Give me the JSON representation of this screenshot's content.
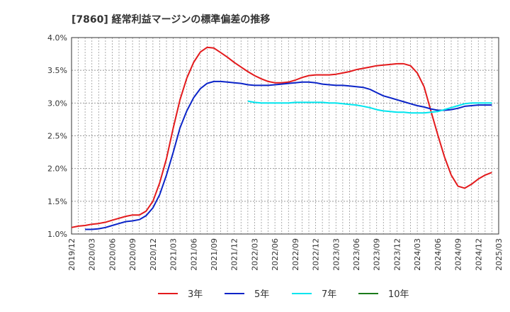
{
  "chart_data": {
    "type": "line",
    "title": "[7860]  経常利益マージンの標準偏差の推移",
    "xlabel": "",
    "ylabel": "",
    "ylim": [
      1.0,
      4.0
    ],
    "y_ticks": [
      "1.0%",
      "1.5%",
      "2.0%",
      "2.5%",
      "3.0%",
      "3.5%",
      "4.0%"
    ],
    "x_ticks": [
      "2019/12",
      "2020/03",
      "2020/06",
      "2020/09",
      "2020/12",
      "2021/03",
      "2021/06",
      "2021/09",
      "2021/12",
      "2022/03",
      "2022/06",
      "2022/09",
      "2022/12",
      "2023/03",
      "2023/06",
      "2023/09",
      "2023/12",
      "2024/03",
      "2024/06",
      "2024/09",
      "2024/12",
      "2025/03"
    ],
    "grid": true,
    "legend_position": "bottom",
    "series": [
      {
        "name": "3年",
        "color": "#e31a1c",
        "points": [
          [
            "2019/12",
            1.1
          ],
          [
            "2020/01",
            1.12
          ],
          [
            "2020/02",
            1.13
          ],
          [
            "2020/03",
            1.15
          ],
          [
            "2020/04",
            1.16
          ],
          [
            "2020/05",
            1.18
          ],
          [
            "2020/06",
            1.21
          ],
          [
            "2020/07",
            1.24
          ],
          [
            "2020/08",
            1.27
          ],
          [
            "2020/09",
            1.29
          ],
          [
            "2020/10",
            1.29
          ],
          [
            "2020/11",
            1.35
          ],
          [
            "2020/12",
            1.5
          ],
          [
            "2021/01",
            1.78
          ],
          [
            "2021/02",
            2.15
          ],
          [
            "2021/03",
            2.62
          ],
          [
            "2021/04",
            3.05
          ],
          [
            "2021/05",
            3.38
          ],
          [
            "2021/06",
            3.62
          ],
          [
            "2021/07",
            3.78
          ],
          [
            "2021/08",
            3.85
          ],
          [
            "2021/09",
            3.84
          ],
          [
            "2021/10",
            3.77
          ],
          [
            "2021/11",
            3.7
          ],
          [
            "2021/12",
            3.62
          ],
          [
            "2022/01",
            3.55
          ],
          [
            "2022/02",
            3.48
          ],
          [
            "2022/03",
            3.42
          ],
          [
            "2022/04",
            3.37
          ],
          [
            "2022/05",
            3.33
          ],
          [
            "2022/06",
            3.31
          ],
          [
            "2022/07",
            3.31
          ],
          [
            "2022/08",
            3.32
          ],
          [
            "2022/09",
            3.35
          ],
          [
            "2022/10",
            3.39
          ],
          [
            "2022/11",
            3.42
          ],
          [
            "2022/12",
            3.43
          ],
          [
            "2023/01",
            3.43
          ],
          [
            "2023/02",
            3.43
          ],
          [
            "2023/03",
            3.44
          ],
          [
            "2023/04",
            3.46
          ],
          [
            "2023/05",
            3.48
          ],
          [
            "2023/06",
            3.51
          ],
          [
            "2023/07",
            3.53
          ],
          [
            "2023/08",
            3.55
          ],
          [
            "2023/09",
            3.57
          ],
          [
            "2023/10",
            3.58
          ],
          [
            "2023/11",
            3.59
          ],
          [
            "2023/12",
            3.6
          ],
          [
            "2024/01",
            3.6
          ],
          [
            "2024/02",
            3.57
          ],
          [
            "2024/03",
            3.46
          ],
          [
            "2024/04",
            3.25
          ],
          [
            "2024/05",
            2.88
          ],
          [
            "2024/06",
            2.52
          ],
          [
            "2024/07",
            2.18
          ],
          [
            "2024/08",
            1.9
          ],
          [
            "2024/09",
            1.73
          ],
          [
            "2024/10",
            1.7
          ],
          [
            "2024/11",
            1.76
          ],
          [
            "2024/12",
            1.84
          ],
          [
            "2025/01",
            1.9
          ],
          [
            "2025/02",
            1.94
          ]
        ]
      },
      {
        "name": "5年",
        "color": "#0b24c8",
        "points": [
          [
            "2020/02",
            1.07
          ],
          [
            "2020/03",
            1.07
          ],
          [
            "2020/04",
            1.08
          ],
          [
            "2020/05",
            1.1
          ],
          [
            "2020/06",
            1.13
          ],
          [
            "2020/07",
            1.16
          ],
          [
            "2020/08",
            1.19
          ],
          [
            "2020/09",
            1.2
          ],
          [
            "2020/10",
            1.22
          ],
          [
            "2020/11",
            1.28
          ],
          [
            "2020/12",
            1.4
          ],
          [
            "2021/01",
            1.6
          ],
          [
            "2021/02",
            1.9
          ],
          [
            "2021/03",
            2.25
          ],
          [
            "2021/04",
            2.62
          ],
          [
            "2021/05",
            2.88
          ],
          [
            "2021/06",
            3.08
          ],
          [
            "2021/07",
            3.22
          ],
          [
            "2021/08",
            3.3
          ],
          [
            "2021/09",
            3.33
          ],
          [
            "2021/10",
            3.33
          ],
          [
            "2021/11",
            3.32
          ],
          [
            "2021/12",
            3.31
          ],
          [
            "2022/01",
            3.3
          ],
          [
            "2022/02",
            3.28
          ],
          [
            "2022/03",
            3.27
          ],
          [
            "2022/04",
            3.27
          ],
          [
            "2022/05",
            3.27
          ],
          [
            "2022/06",
            3.28
          ],
          [
            "2022/07",
            3.29
          ],
          [
            "2022/08",
            3.3
          ],
          [
            "2022/09",
            3.31
          ],
          [
            "2022/10",
            3.32
          ],
          [
            "2022/11",
            3.32
          ],
          [
            "2022/12",
            3.31
          ],
          [
            "2023/01",
            3.29
          ],
          [
            "2023/02",
            3.28
          ],
          [
            "2023/03",
            3.27
          ],
          [
            "2023/04",
            3.27
          ],
          [
            "2023/05",
            3.26
          ],
          [
            "2023/06",
            3.25
          ],
          [
            "2023/07",
            3.24
          ],
          [
            "2023/08",
            3.21
          ],
          [
            "2023/09",
            3.16
          ],
          [
            "2023/10",
            3.11
          ],
          [
            "2023/11",
            3.08
          ],
          [
            "2023/12",
            3.05
          ],
          [
            "2024/01",
            3.02
          ],
          [
            "2024/02",
            2.99
          ],
          [
            "2024/03",
            2.96
          ],
          [
            "2024/04",
            2.94
          ],
          [
            "2024/05",
            2.91
          ],
          [
            "2024/06",
            2.89
          ],
          [
            "2024/07",
            2.89
          ],
          [
            "2024/08",
            2.9
          ],
          [
            "2024/09",
            2.92
          ],
          [
            "2024/10",
            2.95
          ],
          [
            "2024/11",
            2.96
          ],
          [
            "2024/12",
            2.97
          ],
          [
            "2025/01",
            2.97
          ],
          [
            "2025/02",
            2.97
          ]
        ]
      },
      {
        "name": "7年",
        "color": "#00e5ee",
        "points": [
          [
            "2022/02",
            3.03
          ],
          [
            "2022/03",
            3.01
          ],
          [
            "2022/04",
            3.0
          ],
          [
            "2022/05",
            3.0
          ],
          [
            "2022/06",
            3.0
          ],
          [
            "2022/07",
            3.0
          ],
          [
            "2022/08",
            3.0
          ],
          [
            "2022/09",
            3.01
          ],
          [
            "2022/10",
            3.01
          ],
          [
            "2022/11",
            3.01
          ],
          [
            "2022/12",
            3.01
          ],
          [
            "2023/01",
            3.01
          ],
          [
            "2023/02",
            3.0
          ],
          [
            "2023/03",
            3.0
          ],
          [
            "2023/04",
            2.99
          ],
          [
            "2023/05",
            2.98
          ],
          [
            "2023/06",
            2.97
          ],
          [
            "2023/07",
            2.95
          ],
          [
            "2023/08",
            2.93
          ],
          [
            "2023/09",
            2.9
          ],
          [
            "2023/10",
            2.88
          ],
          [
            "2023/11",
            2.87
          ],
          [
            "2023/12",
            2.86
          ],
          [
            "2024/01",
            2.86
          ],
          [
            "2024/02",
            2.85
          ],
          [
            "2024/03",
            2.85
          ],
          [
            "2024/04",
            2.85
          ],
          [
            "2024/05",
            2.86
          ],
          [
            "2024/06",
            2.87
          ],
          [
            "2024/07",
            2.9
          ],
          [
            "2024/08",
            2.93
          ],
          [
            "2024/09",
            2.96
          ],
          [
            "2024/10",
            2.99
          ],
          [
            "2024/11",
            3.0
          ],
          [
            "2024/12",
            3.0
          ],
          [
            "2025/01",
            3.0
          ],
          [
            "2025/02",
            3.0
          ]
        ]
      },
      {
        "name": "10年",
        "color": "#1b7a1b",
        "points": []
      }
    ]
  }
}
